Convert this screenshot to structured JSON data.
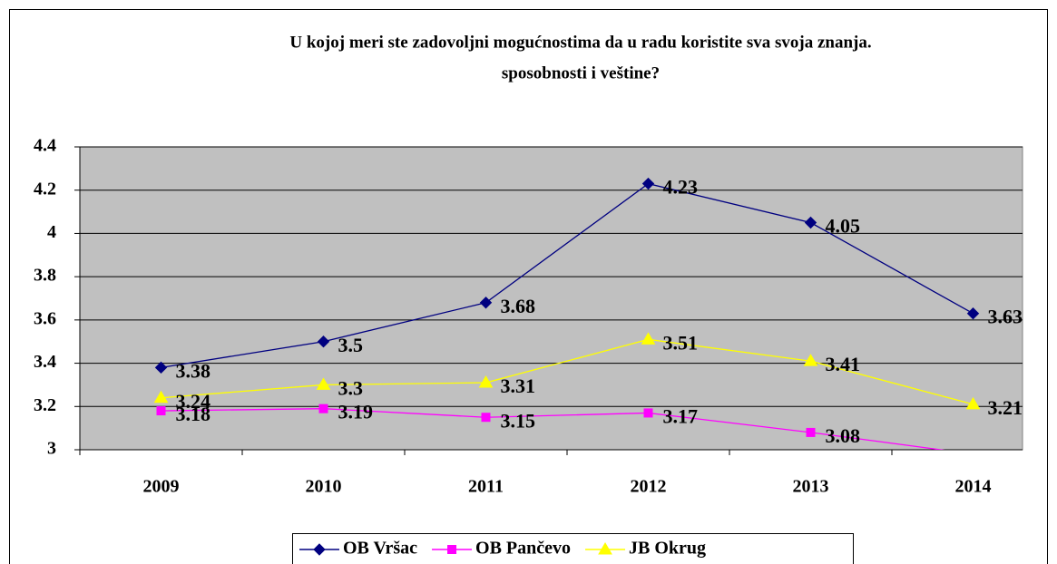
{
  "chart_data": {
    "type": "line",
    "title": [
      "U kojoj meri ste zadovoljni mogućnostima da u radu koristite sva svoja znanja.",
      "sposobnosti i veštine?"
    ],
    "categories": [
      "2009",
      "2010",
      "2011",
      "2012",
      "2013",
      "2014"
    ],
    "series": [
      {
        "name": "OB Vršac",
        "color": "#000080",
        "marker": "diamond",
        "values": [
          3.38,
          3.5,
          3.68,
          4.23,
          4.05,
          3.63
        ]
      },
      {
        "name": "OB Pančevo",
        "color": "#ff00ff",
        "marker": "square",
        "values": [
          3.18,
          3.19,
          3.15,
          3.17,
          3.08,
          2.98
        ]
      },
      {
        "name": "JB Okrug",
        "color": "#ffff00",
        "marker": "triangle",
        "values": [
          3.24,
          3.3,
          3.31,
          3.51,
          3.41,
          3.21
        ]
      }
    ],
    "ylim": [
      3,
      4.4
    ],
    "yticks": [
      3,
      3.2,
      3.4,
      3.6,
      3.8,
      4,
      4.2,
      4.4
    ],
    "grid": true,
    "legend": "bottom"
  }
}
